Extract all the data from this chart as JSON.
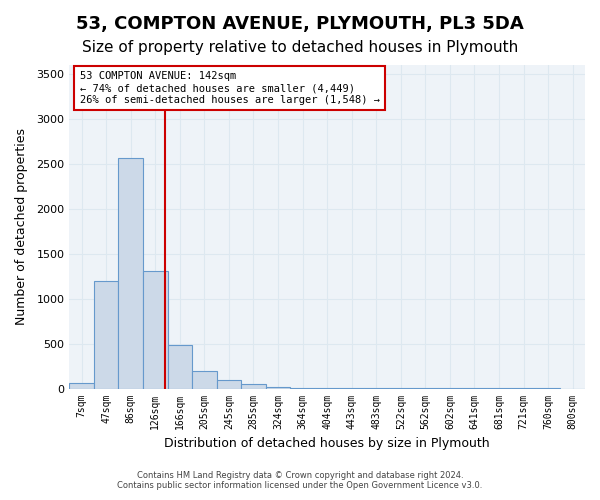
{
  "title1": "53, COMPTON AVENUE, PLYMOUTH, PL3 5DA",
  "title2": "Size of property relative to detached houses in Plymouth",
  "xlabel": "Distribution of detached houses by size in Plymouth",
  "ylabel": "Number of detached properties",
  "footer1": "Contains HM Land Registry data © Crown copyright and database right 2024.",
  "footer2": "Contains public sector information licensed under the Open Government Licence v3.0.",
  "bin_labels": [
    "7sqm",
    "47sqm",
    "86sqm",
    "126sqm",
    "166sqm",
    "205sqm",
    "245sqm",
    "285sqm",
    "324sqm",
    "364sqm",
    "404sqm",
    "443sqm",
    "483sqm",
    "522sqm",
    "562sqm",
    "602sqm",
    "641sqm",
    "681sqm",
    "721sqm",
    "760sqm",
    "800sqm"
  ],
  "bar_values": [
    60,
    1200,
    2570,
    1310,
    490,
    200,
    100,
    55,
    20,
    8,
    8,
    8,
    5,
    3,
    2,
    2,
    1,
    1,
    1,
    1,
    0
  ],
  "bar_color": "#ccd9e8",
  "bar_edge_color": "#6699cc",
  "vline_color": "#cc0000",
  "annotation_text": "53 COMPTON AVENUE: 142sqm\n← 74% of detached houses are smaller (4,449)\n26% of semi-detached houses are larger (1,548) →",
  "annotation_box_color": "#ffffff",
  "annotation_box_edge": "#cc0000",
  "ylim": [
    0,
    3600
  ],
  "yticks": [
    0,
    500,
    1000,
    1500,
    2000,
    2500,
    3000,
    3500
  ],
  "grid_color": "#dde8f0",
  "bg_color": "#eef3f8",
  "title1_fontsize": 13,
  "title2_fontsize": 11,
  "vline_x": 3.4
}
